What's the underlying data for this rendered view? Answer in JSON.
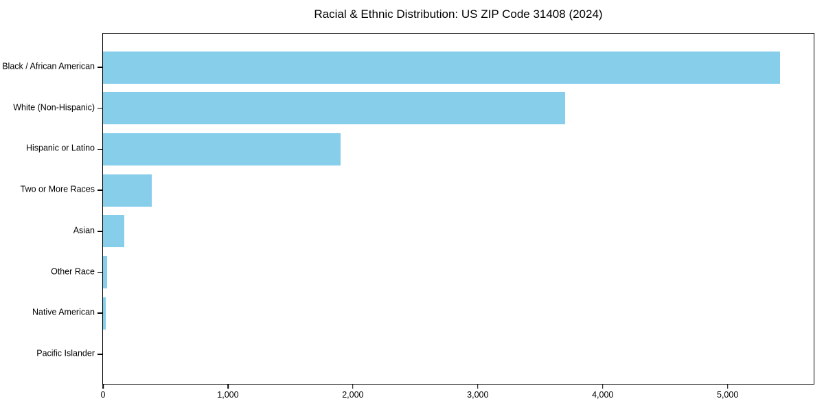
{
  "chart_data": {
    "type": "bar",
    "orientation": "horizontal",
    "title": "Racial & Ethnic Distribution: US ZIP Code 31408 (2024)",
    "categories": [
      "Black / African American",
      "White (Non-Hispanic)",
      "Hispanic or Latino",
      "Two or More Races",
      "Asian",
      "Other Race",
      "Native American",
      "Pacific Islander"
    ],
    "values": [
      5420,
      3700,
      1900,
      390,
      170,
      35,
      20,
      0
    ],
    "xlabel": "",
    "ylabel": "",
    "xlim": [
      0,
      5700
    ],
    "x_ticks": [
      0,
      1000,
      2000,
      3000,
      4000,
      5000
    ],
    "x_tick_labels": [
      "0",
      "1,000",
      "2,000",
      "3,000",
      "4,000",
      "5,000"
    ],
    "grid": false,
    "legend": null,
    "bar_color": "#87CEEB",
    "frame_color": "#000000",
    "background_color": "#ffffff"
  }
}
